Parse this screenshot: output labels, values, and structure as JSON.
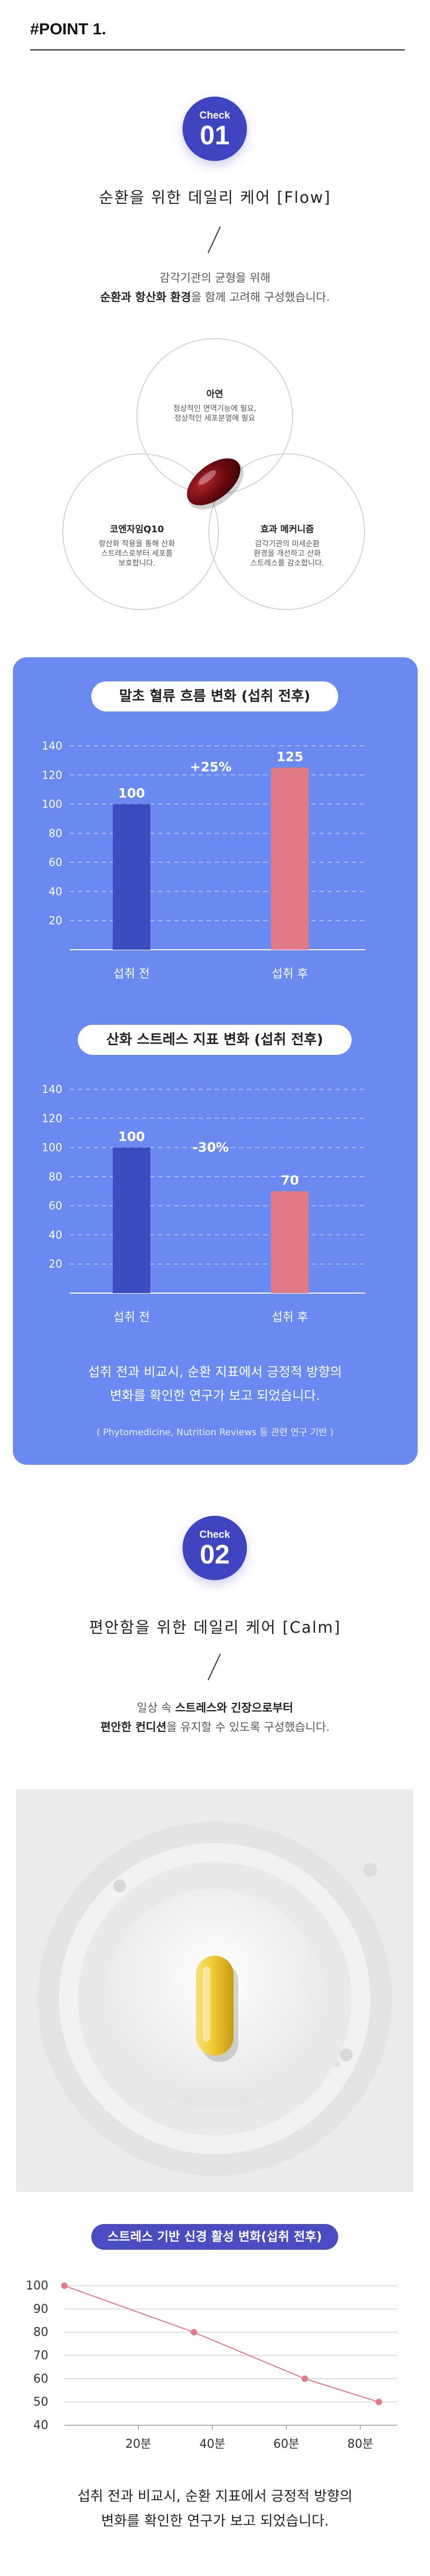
{
  "point": {
    "title": "#POINT 1."
  },
  "section1": {
    "check_label": "Check",
    "check_number": "01",
    "heading": "순환을 위한 데일리 케어 [Flow]",
    "sub_line1": "감각기관의 균형을 위해",
    "sub_line2_bold": "순환과 항산화 환경",
    "sub_line2_rest": "을 함께 고려해 구성했습니다.",
    "venn": [
      {
        "title": "아연",
        "desc": [
          "정상적인 면역기능에 필요,",
          "정상적인 세포분열에 필요"
        ]
      },
      {
        "title": "코엔자임Q10",
        "desc": [
          "항산화 작용을 통해 산화",
          "스트레스로부터 세포를",
          "보호합니다."
        ]
      },
      {
        "title": "효과 메커니즘",
        "desc": [
          "감각기관의 미세순환",
          "환경을 개선하고 산화",
          "스트레스를 감소합니다."
        ]
      }
    ]
  },
  "chart1_title": "말초 혈류 흐름 변화 (섭취 전후)",
  "chart1_annotation": "+25%",
  "chart2_title": "산화 스트레스 지표 변화 (섭취 전후)",
  "chart2_annotation": "-30%",
  "panel_note": [
    "섭취 전과 비교시, 순환 지표에서 긍정적 방향의",
    "변화를 확인한 연구가 보고 되었습니다."
  ],
  "panel_source": "( Phytomedicine, Nutrition Reviews 등 관련 연구 기반 )",
  "section2": {
    "check_label": "Check",
    "check_number": "02",
    "heading": "편안함을 위한 데일리 케어 [Calm]",
    "sub_line1_pre": "일상 속 ",
    "sub_line1_bold": "스트레스와 긴장으로부터",
    "sub_line2_bold": "편안한 컨디션",
    "sub_line2_rest": "을 유지할 수 있도록 구성했습니다."
  },
  "chart3_title": "스트레스 기반 신경 활성 변화(섭취 전후)",
  "bottom_note": [
    "섭취 전과 비교시, 순환 지표에서 긍정적 방향의",
    "변화를 확인한 연구가 보고 되었습니다."
  ],
  "colors": {
    "accent": "#3f45c0",
    "panel": "#6a8af2",
    "bar_before": "#3c4cc0",
    "bar_after": "#e27a86",
    "line": "#e27a86"
  },
  "chart_data": [
    {
      "type": "bar",
      "title": "말초 혈류 흐름 변화 (섭취 전후)",
      "categories": [
        "섭취 전",
        "섭취 후"
      ],
      "values": [
        100,
        125
      ],
      "yticks": [
        20,
        40,
        60,
        80,
        100,
        120,
        140
      ],
      "ylim": [
        0,
        140
      ],
      "annotation": "+25%",
      "grid": true
    },
    {
      "type": "bar",
      "title": "산화 스트레스 지표 변화 (섭취 전후)",
      "categories": [
        "섭취 전",
        "섭취 후"
      ],
      "values": [
        100,
        70
      ],
      "yticks": [
        20,
        40,
        60,
        80,
        100,
        120,
        140
      ],
      "ylim": [
        0,
        140
      ],
      "annotation": "-30%",
      "grid": true
    },
    {
      "type": "line",
      "title": "스트레스 기반 신경 활성 변화(섭취 전후)",
      "x": [
        0,
        35,
        65,
        85
      ],
      "values": [
        100,
        80,
        60,
        50
      ],
      "xticks": [
        "20분",
        "40분",
        "60분",
        "80분"
      ],
      "yticks": [
        40,
        50,
        60,
        70,
        80,
        90,
        100
      ],
      "ylim": [
        40,
        100
      ],
      "grid": true
    }
  ]
}
